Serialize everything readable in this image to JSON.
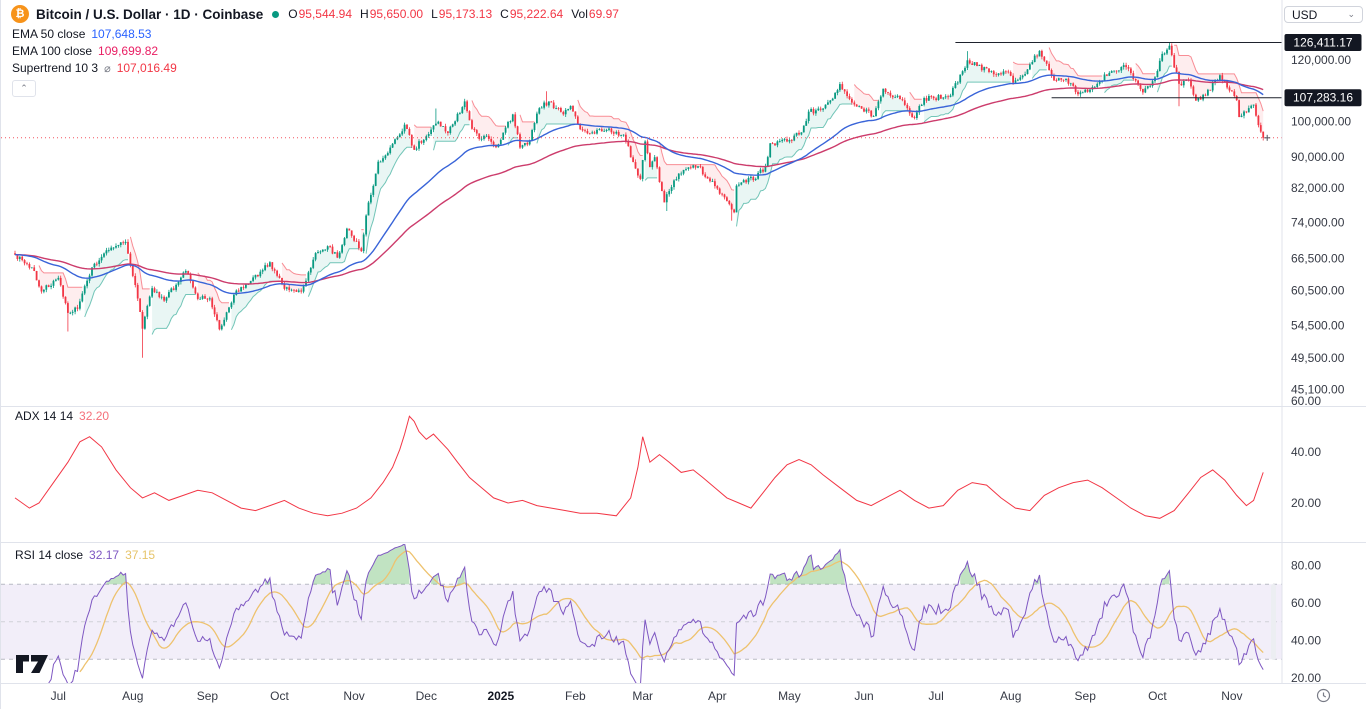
{
  "header": {
    "title": "Bitcoin / U.S. Dollar · 1D · Coinbase",
    "ohlc": {
      "o_label": "O",
      "o": "95,544.94",
      "h_label": "H",
      "h": "95,650.00",
      "l_label": "L",
      "l": "95,173.13",
      "c_label": "C",
      "c": "95,222.64",
      "vol_label": "Vol",
      "vol": "69.97"
    }
  },
  "legend": {
    "ema50": {
      "label": "EMA 50 close",
      "value": "107,648.53",
      "color": "#2962ff"
    },
    "ema100": {
      "label": "EMA 100 close",
      "value": "109,699.82",
      "color": "#e91e63"
    },
    "supertrend": {
      "label": "Supertrend 10 3",
      "symbol": "⌀",
      "value": "107,016.49",
      "color": "#f23645"
    },
    "collapse_glyph": "⌃"
  },
  "currency_selector": {
    "value": "USD"
  },
  "panels": {
    "adx": {
      "label": "ADX 14 14",
      "value": "32.20",
      "color": "#f23645"
    },
    "rsi": {
      "label": "RSI 14 close",
      "value": "32.17",
      "ma_value": "37.15",
      "color": "#7e57c2",
      "ma_color": "#e6c46a"
    }
  },
  "chart_data": {
    "type": "candlestick",
    "title": "Bitcoin / U.S. Dollar",
    "interval": "1D",
    "exchange": "Coinbase",
    "scale": "log",
    "up_color": "#089981",
    "down_color": "#f23645",
    "last_bar": {
      "open": 95544.94,
      "high": 95650.0,
      "low": 95173.13,
      "close": 95222.64,
      "volume": 69.97
    },
    "price_line": {
      "value": 95222.64
    },
    "rays": [
      {
        "value": 126411.17,
        "from_day": 391
      },
      {
        "value": 107283.16,
        "from_day": 431
      }
    ],
    "y_axis": {
      "badges": [
        {
          "label": "126,411.17",
          "v": 126411.17
        },
        {
          "label": "107,283.16",
          "v": 107283.16
        }
      ],
      "ticks": [
        {
          "label": "120,000.00",
          "v": 120000
        },
        {
          "label": "100,000.00",
          "v": 100000
        },
        {
          "label": "90,000.00",
          "v": 90000
        },
        {
          "label": "82,000.00",
          "v": 82000
        },
        {
          "label": "74,000.00",
          "v": 74000
        },
        {
          "label": "66,500.00",
          "v": 66500
        },
        {
          "label": "60,500.00",
          "v": 60500
        },
        {
          "label": "54,500.00",
          "v": 54500
        },
        {
          "label": "49,500.00",
          "v": 49500
        },
        {
          "label": "45,100.00",
          "v": 45100
        }
      ]
    },
    "adx_axis_ticks": [
      {
        "label": "60.00",
        "v": 60
      },
      {
        "label": "40.00",
        "v": 40
      },
      {
        "label": "20.00",
        "v": 20
      }
    ],
    "rsi_axis_ticks": [
      {
        "label": "80.00",
        "v": 80
      },
      {
        "label": "60.00",
        "v": 60
      },
      {
        "label": "40.00",
        "v": 40
      },
      {
        "label": "20.00",
        "v": 20
      }
    ],
    "x_axis_labels": [
      {
        "label": "Jul",
        "d": 18
      },
      {
        "label": "Aug",
        "d": 49
      },
      {
        "label": "Sep",
        "d": 80
      },
      {
        "label": "Oct",
        "d": 110
      },
      {
        "label": "Nov",
        "d": 141
      },
      {
        "label": "Dec",
        "d": 171
      },
      {
        "label": "2025",
        "d": 202,
        "bold": true
      },
      {
        "label": "Feb",
        "d": 233
      },
      {
        "label": "Mar",
        "d": 261
      },
      {
        "label": "Apr",
        "d": 292
      },
      {
        "label": "May",
        "d": 322
      },
      {
        "label": "Jun",
        "d": 353
      },
      {
        "label": "Jul",
        "d": 383
      },
      {
        "label": "Aug",
        "d": 414
      },
      {
        "label": "Sep",
        "d": 445
      },
      {
        "label": "Oct",
        "d": 475
      },
      {
        "label": "Nov",
        "d": 506
      }
    ],
    "close_keypoints": [
      [
        0,
        67300
      ],
      [
        8,
        64100
      ],
      [
        11,
        60300
      ],
      [
        18,
        62800
      ],
      [
        22,
        56600
      ],
      [
        26,
        57300
      ],
      [
        32,
        64800
      ],
      [
        39,
        68200
      ],
      [
        46,
        69900
      ],
      [
        50,
        61500
      ],
      [
        53,
        54000
      ],
      [
        57,
        60900
      ],
      [
        62,
        58700
      ],
      [
        71,
        64100
      ],
      [
        76,
        59000
      ],
      [
        81,
        59100
      ],
      [
        85,
        53900
      ],
      [
        92,
        60500
      ],
      [
        97,
        61700
      ],
      [
        106,
        65800
      ],
      [
        112,
        60800
      ],
      [
        119,
        60300
      ],
      [
        125,
        67600
      ],
      [
        130,
        69000
      ],
      [
        134,
        66700
      ],
      [
        138,
        72700
      ],
      [
        144,
        68000
      ],
      [
        146,
        75600
      ],
      [
        151,
        88700
      ],
      [
        155,
        91000
      ],
      [
        162,
        99000
      ],
      [
        166,
        91900
      ],
      [
        174,
        98800
      ],
      [
        176,
        99900
      ],
      [
        180,
        96600
      ],
      [
        187,
        106100
      ],
      [
        190,
        97800
      ],
      [
        193,
        94900
      ],
      [
        196,
        95800
      ],
      [
        200,
        92600
      ],
      [
        207,
        102100
      ],
      [
        210,
        92500
      ],
      [
        214,
        94500
      ],
      [
        218,
        104000
      ],
      [
        222,
        106100
      ],
      [
        228,
        102100
      ],
      [
        231,
        104700
      ],
      [
        235,
        97700
      ],
      [
        239,
        96500
      ],
      [
        246,
        97500
      ],
      [
        253,
        96100
      ],
      [
        257,
        88600
      ],
      [
        260,
        84300
      ],
      [
        262,
        94200
      ],
      [
        264,
        87300
      ],
      [
        266,
        89900
      ],
      [
        270,
        78600
      ],
      [
        274,
        83900
      ],
      [
        279,
        86800
      ],
      [
        284,
        87500
      ],
      [
        288,
        84400
      ],
      [
        291,
        82500
      ],
      [
        297,
        78200
      ],
      [
        299,
        76300
      ],
      [
        300,
        82600
      ],
      [
        305,
        84500
      ],
      [
        307,
        84000
      ],
      [
        312,
        87500
      ],
      [
        314,
        93700
      ],
      [
        321,
        94200
      ],
      [
        327,
        96800
      ],
      [
        330,
        102900
      ],
      [
        335,
        103500
      ],
      [
        339,
        106400
      ],
      [
        343,
        111700
      ],
      [
        346,
        107800
      ],
      [
        351,
        104600
      ],
      [
        357,
        101600
      ],
      [
        361,
        110200
      ],
      [
        368,
        106800
      ],
      [
        374,
        101000
      ],
      [
        378,
        107200
      ],
      [
        382,
        107100
      ],
      [
        389,
        108000
      ],
      [
        396,
        119900
      ],
      [
        400,
        117900
      ],
      [
        407,
        115000
      ],
      [
        413,
        115800
      ],
      [
        415,
        112200
      ],
      [
        421,
        116700
      ],
      [
        426,
        123300
      ],
      [
        432,
        113000
      ],
      [
        437,
        113500
      ],
      [
        442,
        108400
      ],
      [
        448,
        110700
      ],
      [
        456,
        116100
      ],
      [
        462,
        117500
      ],
      [
        469,
        109000
      ],
      [
        474,
        114000
      ],
      [
        477,
        122200
      ],
      [
        480,
        125200
      ],
      [
        484,
        111800
      ],
      [
        488,
        113000
      ],
      [
        491,
        106400
      ],
      [
        495,
        108000
      ],
      [
        501,
        114700
      ],
      [
        505,
        109600
      ],
      [
        508,
        106500
      ],
      [
        509,
        101300
      ],
      [
        512,
        102700
      ],
      [
        515,
        105100
      ],
      [
        517,
        98900
      ],
      [
        518,
        97000
      ],
      [
        519,
        95222.64
      ]
    ],
    "wick_events": {
      "22": {
        "lo": 53550
      },
      "53": {
        "lo": 49540
      },
      "175": {
        "hi": 103900
      },
      "221": {
        "hi": 109356
      },
      "271": {
        "lo": 76606
      },
      "298": {
        "lo": 74434
      },
      "396": {
        "hi": 123218
      },
      "480": {
        "hi": 126411.17
      },
      "484": {
        "lo": 104582
      }
    },
    "indicators": {
      "ema50": {
        "period": 50,
        "color": "#3964d8"
      },
      "ema100": {
        "period": 100,
        "color": "#cc3c6c"
      },
      "supertrend": {
        "atr_period": 10,
        "factor": 3,
        "up_color": "#089981",
        "down_color": "#f23645"
      },
      "adx": {
        "smoothing": 14,
        "di_length": 14,
        "color": "#f23645",
        "keypoints": [
          [
            0,
            22
          ],
          [
            6,
            18
          ],
          [
            10,
            20
          ],
          [
            16,
            28
          ],
          [
            22,
            36
          ],
          [
            27,
            44
          ],
          [
            31,
            46
          ],
          [
            36,
            42
          ],
          [
            42,
            33
          ],
          [
            48,
            26
          ],
          [
            53,
            22
          ],
          [
            58,
            24
          ],
          [
            64,
            21
          ],
          [
            70,
            23
          ],
          [
            76,
            25
          ],
          [
            82,
            24
          ],
          [
            88,
            21
          ],
          [
            94,
            18
          ],
          [
            100,
            17
          ],
          [
            106,
            19
          ],
          [
            112,
            21
          ],
          [
            118,
            18
          ],
          [
            124,
            16
          ],
          [
            130,
            15
          ],
          [
            136,
            16
          ],
          [
            142,
            18
          ],
          [
            148,
            22
          ],
          [
            153,
            28
          ],
          [
            157,
            34
          ],
          [
            160,
            41
          ],
          [
            162,
            47
          ],
          [
            164,
            54
          ],
          [
            166,
            52
          ],
          [
            168,
            48
          ],
          [
            171,
            45
          ],
          [
            174,
            47
          ],
          [
            177,
            44
          ],
          [
            180,
            41
          ],
          [
            184,
            36
          ],
          [
            189,
            30
          ],
          [
            194,
            26
          ],
          [
            199,
            22
          ],
          [
            205,
            20
          ],
          [
            211,
            21
          ],
          [
            217,
            19
          ],
          [
            223,
            18
          ],
          [
            229,
            17
          ],
          [
            235,
            16
          ],
          [
            242,
            16
          ],
          [
            250,
            15
          ],
          [
            256,
            22
          ],
          [
            259,
            34
          ],
          [
            261,
            46
          ],
          [
            264,
            36
          ],
          [
            268,
            39
          ],
          [
            272,
            36
          ],
          [
            277,
            32
          ],
          [
            282,
            33
          ],
          [
            286,
            30
          ],
          [
            291,
            26
          ],
          [
            296,
            22
          ],
          [
            301,
            20
          ],
          [
            306,
            18
          ],
          [
            311,
            24
          ],
          [
            316,
            30
          ],
          [
            321,
            35
          ],
          [
            326,
            37
          ],
          [
            331,
            35
          ],
          [
            336,
            31
          ],
          [
            343,
            26
          ],
          [
            350,
            21
          ],
          [
            356,
            19
          ],
          [
            362,
            22
          ],
          [
            368,
            25
          ],
          [
            374,
            21
          ],
          [
            380,
            18
          ],
          [
            386,
            19
          ],
          [
            392,
            25
          ],
          [
            398,
            28
          ],
          [
            404,
            27
          ],
          [
            410,
            22
          ],
          [
            416,
            18
          ],
          [
            422,
            17
          ],
          [
            428,
            23
          ],
          [
            434,
            26
          ],
          [
            440,
            28
          ],
          [
            446,
            29
          ],
          [
            452,
            26
          ],
          [
            458,
            22
          ],
          [
            464,
            18
          ],
          [
            470,
            15
          ],
          [
            476,
            14
          ],
          [
            482,
            17
          ],
          [
            488,
            24
          ],
          [
            493,
            30
          ],
          [
            498,
            33
          ],
          [
            503,
            29
          ],
          [
            508,
            23
          ],
          [
            512,
            19
          ],
          [
            515,
            21
          ],
          [
            519,
            32
          ]
        ]
      },
      "rsi": {
        "period": 14,
        "ma_period": 14,
        "color": "#7e57c2",
        "ma_color": "#eec26e",
        "bands": [
          70,
          50,
          30
        ],
        "band_fill": "rgba(126,87,194,0.10)",
        "over_fill": "rgba(76,175,80,0.35)"
      }
    }
  }
}
